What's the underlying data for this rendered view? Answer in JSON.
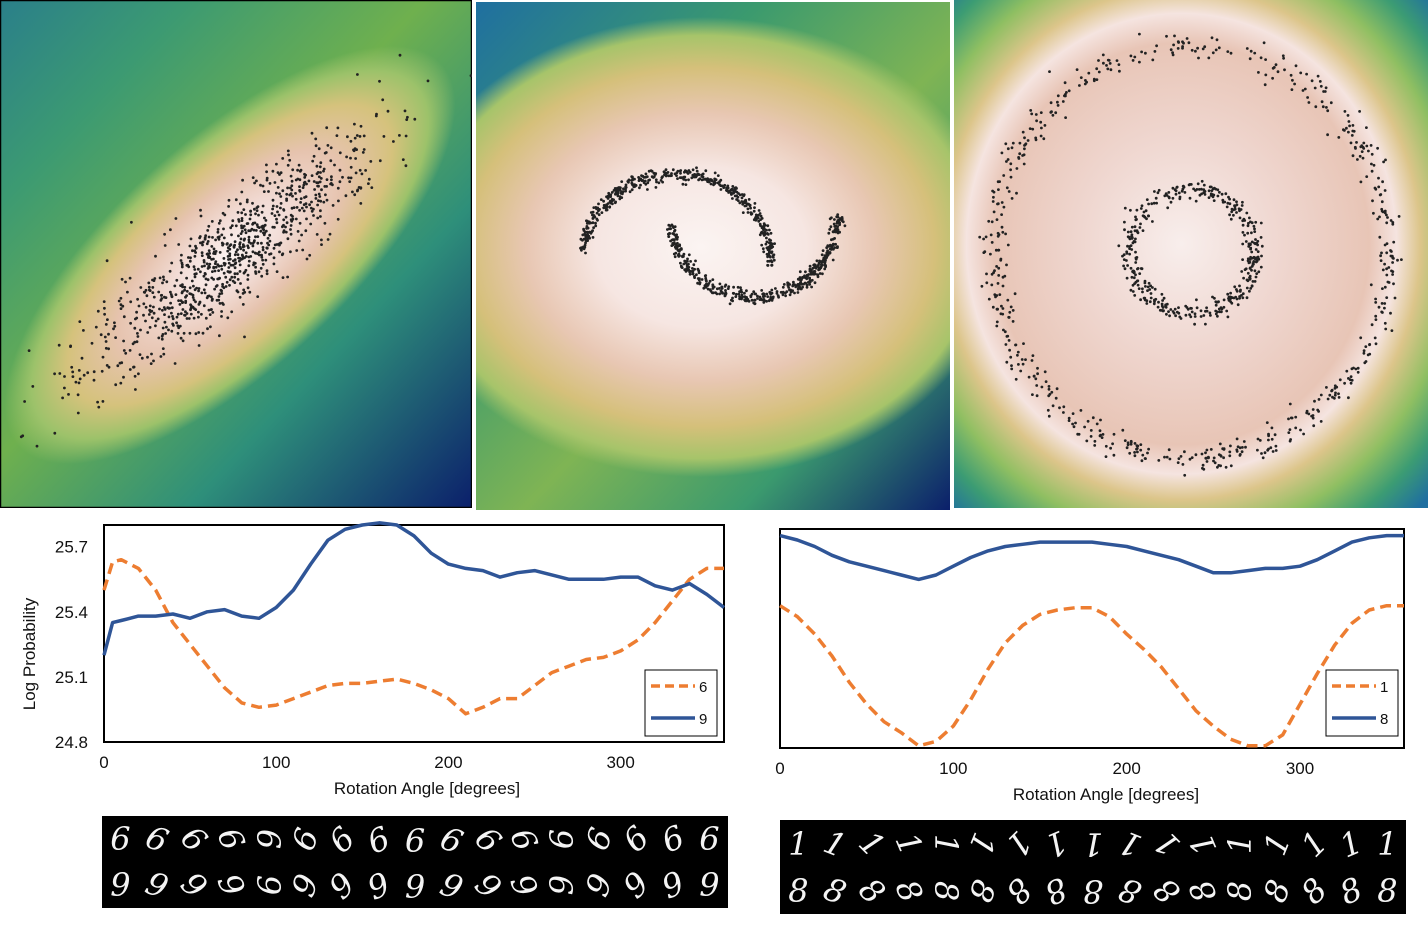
{
  "chart_data": [
    {
      "type": "heatmap",
      "title": "",
      "description": "Density heatmap with elongated gaussian cloud of samples oriented along the diagonal",
      "colormap": [
        "#0b1f6b",
        "#1f6f9a",
        "#2f9a6a",
        "#8fbd4e",
        "#d8c27a",
        "#e8c8b6",
        "#f8eeec"
      ],
      "samples": {
        "shape": "gaussian",
        "center": [
          0.5,
          0.5
        ],
        "angle_deg": -40,
        "spread": [
          0.32,
          0.07
        ],
        "count": 900
      }
    },
    {
      "type": "heatmap",
      "title": "",
      "samples": {
        "shape": "two-moons",
        "count": 900
      }
    },
    {
      "type": "heatmap",
      "title": "",
      "samples": {
        "shape": "two-circles",
        "inner_radius": 0.14,
        "outer_radius": 0.43,
        "count": 1000
      }
    },
    {
      "type": "line",
      "xlabel": "Rotation Angle [degrees]",
      "ylabel": "Log Probability",
      "xlim": [
        0,
        360
      ],
      "ylim": [
        24.8,
        25.8
      ],
      "xticks": [
        "0",
        "100",
        "200",
        "300"
      ],
      "xtick_values": [
        0,
        100,
        200,
        300
      ],
      "yticks": [
        "25.7",
        "25.4",
        "25.1",
        "24.8"
      ],
      "ytick_values": [
        25.7,
        25.4,
        25.1,
        24.8
      ],
      "legend": "bottom-right",
      "series": [
        {
          "name": "6",
          "color": "#ed7d31",
          "style": "dashed",
          "x": [
            0,
            5,
            10,
            20,
            30,
            40,
            50,
            60,
            70,
            80,
            90,
            100,
            110,
            120,
            130,
            140,
            150,
            160,
            170,
            180,
            190,
            200,
            210,
            220,
            230,
            240,
            250,
            260,
            270,
            280,
            290,
            300,
            310,
            320,
            330,
            340,
            350,
            360
          ],
          "values": [
            25.5,
            25.63,
            25.64,
            25.6,
            25.5,
            25.35,
            25.25,
            25.15,
            25.05,
            24.98,
            24.96,
            24.97,
            25.0,
            25.03,
            25.06,
            25.07,
            25.07,
            25.08,
            25.09,
            25.07,
            25.04,
            25.0,
            24.93,
            24.96,
            25.0,
            25.0,
            25.06,
            25.12,
            25.15,
            25.18,
            25.19,
            25.22,
            25.27,
            25.35,
            25.45,
            25.55,
            25.6,
            25.6
          ]
        },
        {
          "name": "9",
          "color": "#2f5597",
          "style": "solid",
          "x": [
            0,
            5,
            10,
            20,
            30,
            40,
            50,
            60,
            70,
            80,
            90,
            100,
            110,
            120,
            130,
            140,
            150,
            160,
            170,
            180,
            190,
            200,
            210,
            220,
            230,
            240,
            250,
            260,
            270,
            280,
            290,
            300,
            310,
            320,
            330,
            340,
            350,
            360
          ],
          "values": [
            25.2,
            25.35,
            25.36,
            25.38,
            25.38,
            25.39,
            25.37,
            25.4,
            25.41,
            25.38,
            25.37,
            25.42,
            25.5,
            25.62,
            25.73,
            25.78,
            25.8,
            25.81,
            25.8,
            25.75,
            25.67,
            25.62,
            25.6,
            25.59,
            25.56,
            25.58,
            25.59,
            25.57,
            25.55,
            25.55,
            25.55,
            25.56,
            25.56,
            25.52,
            25.5,
            25.53,
            25.48,
            25.42
          ]
        }
      ]
    },
    {
      "type": "line",
      "xlabel": "Rotation Angle [degrees]",
      "ylabel": "",
      "xlim": [
        0,
        360
      ],
      "ylim": [
        0,
        1
      ],
      "xticks": [
        "0",
        "100",
        "200",
        "300"
      ],
      "xtick_values": [
        0,
        100,
        200,
        300
      ],
      "legend": "bottom-right",
      "series": [
        {
          "name": "1",
          "color": "#ed7d31",
          "style": "dashed",
          "x": [
            0,
            10,
            20,
            30,
            40,
            50,
            60,
            70,
            80,
            90,
            100,
            110,
            120,
            130,
            140,
            150,
            160,
            170,
            180,
            190,
            200,
            210,
            220,
            230,
            240,
            250,
            260,
            270,
            280,
            290,
            300,
            310,
            320,
            330,
            340,
            350,
            360
          ],
          "values": [
            0.65,
            0.6,
            0.52,
            0.42,
            0.3,
            0.2,
            0.12,
            0.07,
            0.01,
            0.03,
            0.1,
            0.22,
            0.36,
            0.48,
            0.56,
            0.61,
            0.63,
            0.64,
            0.64,
            0.6,
            0.52,
            0.45,
            0.37,
            0.27,
            0.17,
            0.1,
            0.04,
            0.01,
            0.01,
            0.06,
            0.2,
            0.34,
            0.47,
            0.57,
            0.63,
            0.65,
            0.65
          ]
        },
        {
          "name": "8",
          "color": "#2f5597",
          "style": "solid",
          "x": [
            0,
            10,
            20,
            30,
            40,
            50,
            60,
            70,
            80,
            90,
            100,
            110,
            120,
            130,
            140,
            150,
            160,
            170,
            180,
            190,
            200,
            210,
            220,
            230,
            240,
            250,
            260,
            270,
            280,
            290,
            300,
            310,
            320,
            330,
            340,
            350,
            360
          ],
          "values": [
            0.97,
            0.95,
            0.92,
            0.88,
            0.85,
            0.83,
            0.81,
            0.79,
            0.77,
            0.79,
            0.83,
            0.87,
            0.9,
            0.92,
            0.93,
            0.94,
            0.94,
            0.94,
            0.94,
            0.93,
            0.92,
            0.9,
            0.88,
            0.86,
            0.83,
            0.8,
            0.8,
            0.81,
            0.82,
            0.82,
            0.83,
            0.86,
            0.9,
            0.94,
            0.96,
            0.97,
            0.97
          ]
        }
      ]
    }
  ],
  "digit_strips": [
    {
      "row_top": [
        "6",
        "6",
        "6",
        "6",
        "6",
        "9",
        "9",
        "9",
        "9",
        "9",
        "9",
        "9",
        "6",
        "6",
        "6",
        "6",
        "6"
      ],
      "row_bottom": [
        "9",
        "9",
        "9",
        "9",
        "9",
        "6",
        "6",
        "6",
        "6",
        "6",
        "6",
        "6",
        "9",
        "9",
        "9",
        "9",
        "9"
      ],
      "rotations": [
        0,
        22,
        45,
        67,
        90,
        112,
        135,
        157,
        180,
        202,
        225,
        247,
        270,
        292,
        315,
        337,
        360
      ]
    },
    {
      "row_top": [
        "1",
        "1",
        "1",
        "1",
        "1",
        "1",
        "1",
        "1",
        "1",
        "1",
        "1",
        "1",
        "1",
        "1",
        "1",
        "1",
        "1"
      ],
      "row_bottom": [
        "8",
        "8",
        "8",
        "8",
        "8",
        "8",
        "8",
        "8",
        "8",
        "8",
        "8",
        "8",
        "8",
        "8",
        "8",
        "8",
        "8"
      ],
      "rotations": [
        0,
        22,
        45,
        67,
        90,
        112,
        135,
        157,
        180,
        202,
        225,
        247,
        270,
        292,
        315,
        337,
        360
      ]
    }
  ]
}
